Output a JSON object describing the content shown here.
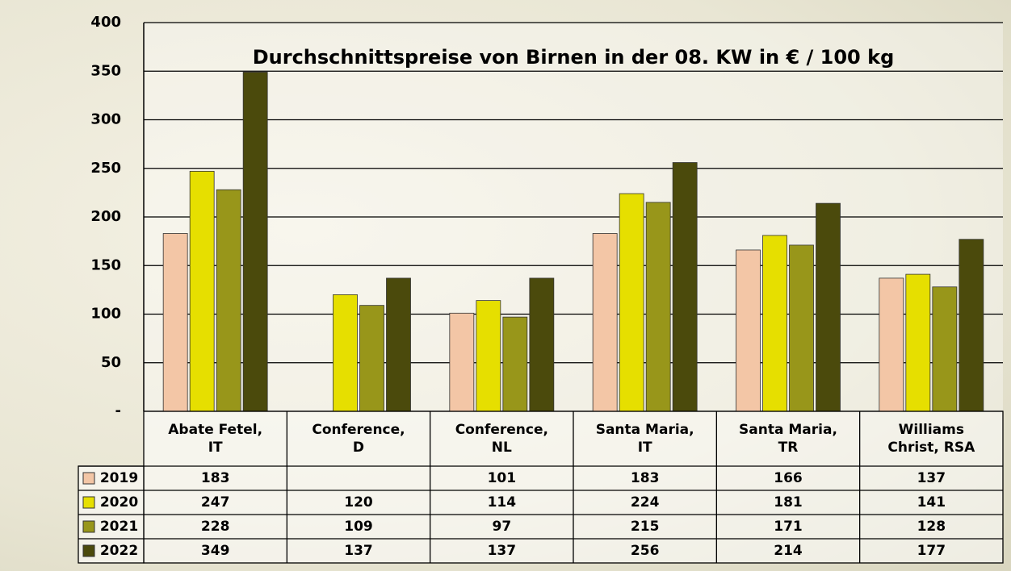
{
  "chart_data": {
    "type": "bar",
    "title": "Durchschnittspreise von Birnen in der 08. KW in € / 100 kg",
    "categories": [
      "Abate Fetel,\nIT",
      "Conference,\nD",
      "Conference,\nNL",
      "Santa Maria,\nIT",
      "Santa Maria,\nTR",
      "Williams\nChrist, RSA"
    ],
    "series": [
      {
        "name": "2019",
        "color": "#f3c6a6",
        "values": [
          183,
          null,
          101,
          183,
          166,
          137
        ]
      },
      {
        "name": "2020",
        "color": "#e6df00",
        "values": [
          247,
          120,
          114,
          224,
          181,
          141
        ]
      },
      {
        "name": "2021",
        "color": "#98961a",
        "values": [
          228,
          109,
          97,
          215,
          171,
          128
        ]
      },
      {
        "name": "2022",
        "color": "#4b4a0c",
        "values": [
          349,
          137,
          137,
          256,
          214,
          177
        ]
      }
    ],
    "ylim": [
      0,
      400
    ],
    "yticks": [
      {
        "value": 0,
        "label": "-"
      },
      50,
      100,
      150,
      200,
      250,
      300,
      350,
      400
    ],
    "grid": true
  }
}
